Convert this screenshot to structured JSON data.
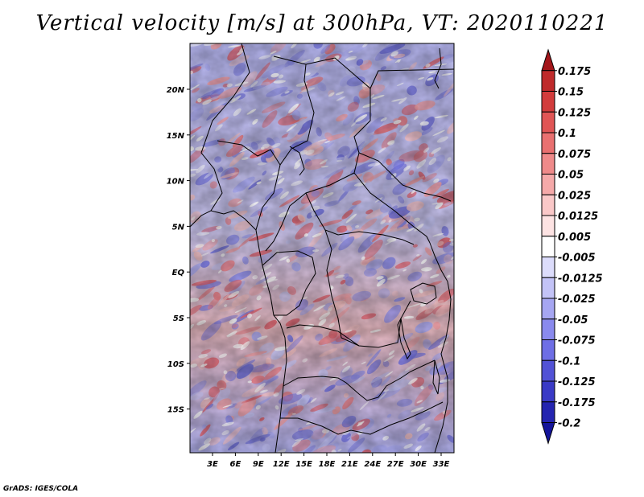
{
  "title": "Vertical velocity [m/s] at 300hPa, VT: 2020110221",
  "footer": "GrADS: IGES/COLA",
  "map": {
    "lon_ticks": [
      "3E",
      "6E",
      "9E",
      "12E",
      "15E",
      "18E",
      "21E",
      "24E",
      "27E",
      "30E",
      "33E"
    ],
    "lat_ticks": [
      "20N",
      "15N",
      "10N",
      "5N",
      "EQ",
      "5S",
      "10S",
      "15S"
    ]
  },
  "colorbar": {
    "labels": [
      "0.175",
      "0.15",
      "0.125",
      "0.1",
      "0.075",
      "0.05",
      "0.025",
      "0.0125",
      "0.005",
      "-0.005",
      "-0.0125",
      "-0.025",
      "-0.05",
      "-0.075",
      "-0.1",
      "-0.125",
      "-0.175",
      "-0.2"
    ],
    "colors": [
      "#a3161a",
      "#bf2a2b",
      "#d23c3c",
      "#e05555",
      "#e97070",
      "#ef8a8a",
      "#f5a9a9",
      "#fac8c8",
      "#fde3e3",
      "#ffffff",
      "#dcdcfb",
      "#c3c3f7",
      "#a6a6f2",
      "#8a8aee",
      "#6e6ee5",
      "#5252d6",
      "#3a3ac6",
      "#2424b0",
      "#14149a"
    ]
  }
}
